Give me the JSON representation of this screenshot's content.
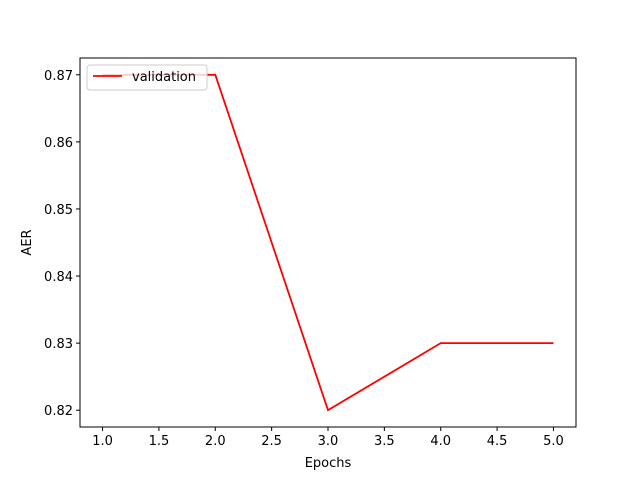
{
  "chart_data": {
    "type": "line",
    "title": "",
    "xlabel": "Epochs",
    "ylabel": "AER",
    "xlim": [
      0.8,
      5.2
    ],
    "ylim": [
      0.8175,
      0.8725
    ],
    "xticks": [
      1.0,
      1.5,
      2.0,
      2.5,
      3.0,
      3.5,
      4.0,
      4.5,
      5.0
    ],
    "xtick_labels": [
      "1.0",
      "1.5",
      "2.0",
      "2.5",
      "3.0",
      "3.5",
      "4.0",
      "4.5",
      "5.0"
    ],
    "yticks": [
      0.82,
      0.83,
      0.84,
      0.85,
      0.86,
      0.87
    ],
    "ytick_labels": [
      "0.82",
      "0.83",
      "0.84",
      "0.85",
      "0.86",
      "0.87"
    ],
    "grid": false,
    "legend_position": "upper-left",
    "series": [
      {
        "name": "validation",
        "color": "#ff0000",
        "x": [
          1,
          2,
          3,
          4,
          5
        ],
        "y": [
          0.87,
          0.87,
          0.82,
          0.83,
          0.83
        ]
      }
    ]
  }
}
